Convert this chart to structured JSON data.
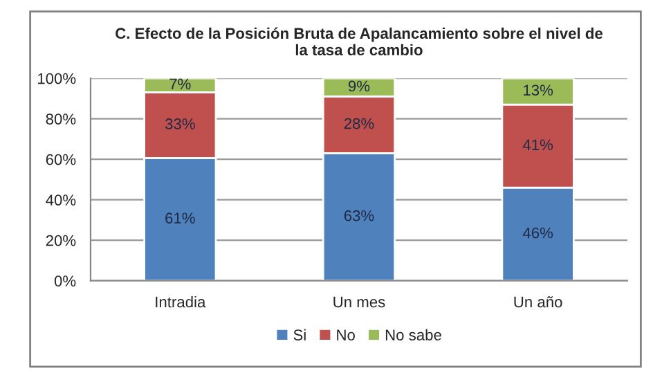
{
  "chart_data": {
    "type": "bar",
    "stacked": true,
    "title": "C. Efecto de la Posición Bruta de Apalancamiento sobre el nivel de\nla tasa de cambio",
    "categories": [
      "Intradia",
      "Un mes",
      "Un año"
    ],
    "series": [
      {
        "name": "Si",
        "color": "#4f81bd",
        "values": [
          60.6,
          63,
          46
        ],
        "value_labels": [
          "61%",
          "63%",
          "46%"
        ]
      },
      {
        "name": "No",
        "color": "#c0504d",
        "values": [
          32.5,
          28,
          41
        ],
        "value_labels": [
          "33%",
          "28%",
          "41%"
        ]
      },
      {
        "name": "No sabe",
        "color": "#9bbb59",
        "values": [
          6.9,
          9,
          13
        ],
        "value_labels": [
          "7%",
          "9%",
          "13%"
        ]
      }
    ],
    "ylim": [
      0,
      100
    ],
    "yticks": [
      {
        "value": 0,
        "label": "0%"
      },
      {
        "value": 20,
        "label": "20%"
      },
      {
        "value": 40,
        "label": "40%"
      },
      {
        "value": 60,
        "label": "60%"
      },
      {
        "value": 80,
        "label": "80%"
      },
      {
        "value": 100,
        "label": "100%"
      }
    ],
    "grid": "y",
    "legend": "bottom"
  }
}
